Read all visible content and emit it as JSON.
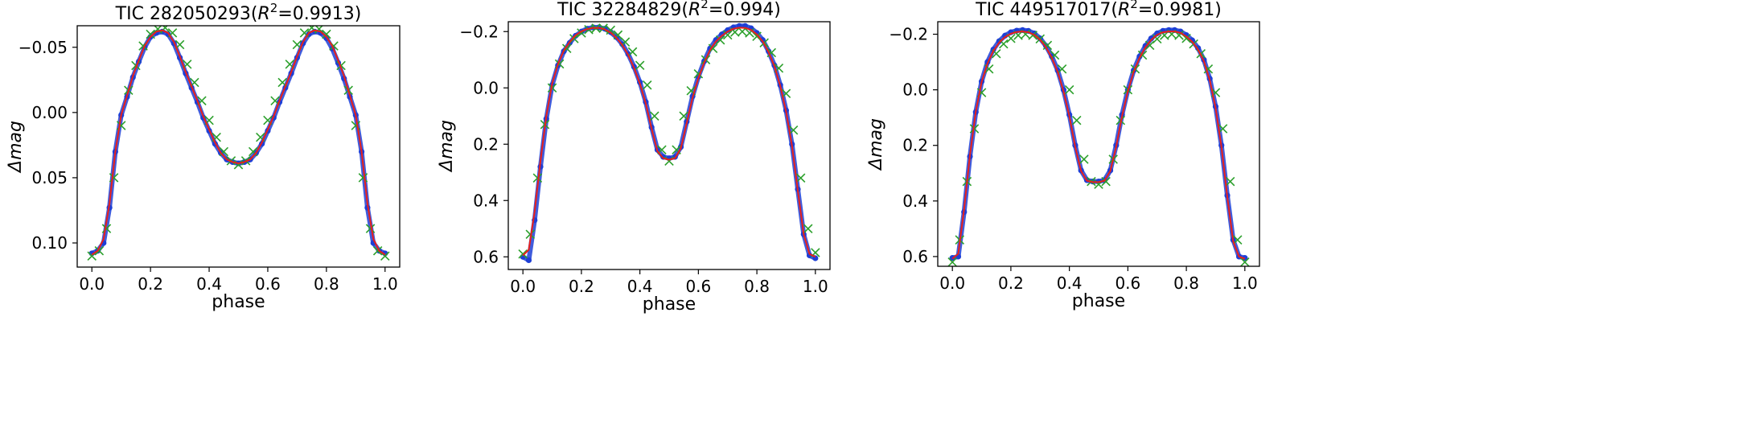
{
  "chart_data": [
    {
      "type": "scatter",
      "title_main": "TIC 282050293(",
      "title_sup": "2",
      "title_tail": "=0.9913)",
      "xlabel": "phase",
      "ylabel": "Δmag",
      "xlim": [
        -0.05,
        1.05
      ],
      "ylim": [
        0.1185,
        -0.0665
      ],
      "y_inverted": true,
      "xticks": [
        0.0,
        0.2,
        0.4,
        0.6,
        0.8,
        1.0
      ],
      "xtick_labels": [
        "0.0",
        "0.2",
        "0.4",
        "0.6",
        "0.8",
        "1.0"
      ],
      "yticks": [
        -0.05,
        0.0,
        0.05,
        0.1
      ],
      "ytick_labels": [
        "−0.05",
        "0.00",
        "0.05",
        "0.10"
      ],
      "grid": false,
      "legend": "none",
      "series": [
        {
          "role": "observed",
          "marker": "dot",
          "color": "#1f3fd6",
          "x": [
            0.0,
            0.02,
            0.04,
            0.06,
            0.08,
            0.1,
            0.12,
            0.14,
            0.16,
            0.18,
            0.2,
            0.22,
            0.24,
            0.26,
            0.28,
            0.3,
            0.32,
            0.34,
            0.36,
            0.38,
            0.4,
            0.42,
            0.44,
            0.46,
            0.48,
            0.5,
            0.52,
            0.54,
            0.56,
            0.58,
            0.6,
            0.62,
            0.64,
            0.66,
            0.68,
            0.7,
            0.72,
            0.74,
            0.76,
            0.78,
            0.8,
            0.82,
            0.84,
            0.86,
            0.88,
            0.9,
            0.92,
            0.94,
            0.96,
            0.98,
            1.0
          ],
          "y": [
            0.108,
            0.106,
            0.1,
            0.073,
            0.03,
            0.002,
            -0.012,
            -0.027,
            -0.039,
            -0.05,
            -0.058,
            -0.061,
            -0.062,
            -0.06,
            -0.053,
            -0.042,
            -0.03,
            -0.019,
            -0.008,
            0.004,
            0.014,
            0.024,
            0.031,
            0.036,
            0.038,
            0.039,
            0.038,
            0.036,
            0.031,
            0.024,
            0.014,
            0.004,
            -0.008,
            -0.019,
            -0.03,
            -0.042,
            -0.053,
            -0.06,
            -0.062,
            -0.061,
            -0.057,
            -0.049,
            -0.038,
            -0.026,
            -0.012,
            0.002,
            0.03,
            0.073,
            0.1,
            0.106,
            0.108
          ]
        },
        {
          "role": "model",
          "marker": "x",
          "color": "#2ca02c",
          "x": [
            0.0,
            0.025,
            0.05,
            0.075,
            0.1,
            0.125,
            0.15,
            0.175,
            0.2,
            0.225,
            0.25,
            0.275,
            0.3,
            0.325,
            0.35,
            0.375,
            0.4,
            0.425,
            0.45,
            0.475,
            0.5,
            0.525,
            0.55,
            0.575,
            0.6,
            0.625,
            0.65,
            0.675,
            0.7,
            0.725,
            0.75,
            0.775,
            0.8,
            0.825,
            0.85,
            0.875,
            0.9,
            0.925,
            0.95,
            0.975,
            1.0
          ],
          "y": [
            0.11,
            0.106,
            0.089,
            0.05,
            0.01,
            -0.017,
            -0.036,
            -0.051,
            -0.06,
            -0.064,
            -0.065,
            -0.061,
            -0.052,
            -0.037,
            -0.023,
            -0.009,
            0.006,
            0.019,
            0.03,
            0.037,
            0.04,
            0.037,
            0.03,
            0.019,
            0.006,
            -0.009,
            -0.023,
            -0.037,
            -0.052,
            -0.061,
            -0.065,
            -0.064,
            -0.06,
            -0.051,
            -0.036,
            -0.017,
            0.01,
            0.05,
            0.089,
            0.106,
            0.11
          ]
        },
        {
          "role": "fit",
          "marker": "line",
          "color": "#e8201b",
          "x": [
            0.0,
            0.02,
            0.04,
            0.06,
            0.08,
            0.1,
            0.12,
            0.14,
            0.16,
            0.18,
            0.2,
            0.22,
            0.24,
            0.26,
            0.28,
            0.3,
            0.32,
            0.34,
            0.36,
            0.38,
            0.4,
            0.42,
            0.44,
            0.46,
            0.48,
            0.5,
            0.52,
            0.54,
            0.56,
            0.58,
            0.6,
            0.62,
            0.64,
            0.66,
            0.68,
            0.7,
            0.72,
            0.74,
            0.76,
            0.78,
            0.8,
            0.82,
            0.84,
            0.86,
            0.88,
            0.9,
            0.92,
            0.94,
            0.96,
            0.98,
            1.0
          ],
          "y": [
            0.109,
            0.106,
            0.097,
            0.07,
            0.03,
            0.002,
            -0.013,
            -0.028,
            -0.04,
            -0.051,
            -0.058,
            -0.062,
            -0.063,
            -0.061,
            -0.054,
            -0.043,
            -0.031,
            -0.02,
            -0.009,
            0.003,
            0.013,
            0.023,
            0.031,
            0.036,
            0.038,
            0.039,
            0.038,
            0.036,
            0.031,
            0.023,
            0.013,
            0.003,
            -0.009,
            -0.02,
            -0.031,
            -0.043,
            -0.054,
            -0.061,
            -0.063,
            -0.062,
            -0.058,
            -0.051,
            -0.04,
            -0.028,
            -0.013,
            0.002,
            0.03,
            0.07,
            0.097,
            0.106,
            0.109
          ]
        }
      ]
    },
    {
      "type": "scatter",
      "title_main": "TIC 32284829(",
      "title_sup": "2",
      "title_tail": "=0.994)",
      "xlabel": "phase",
      "ylabel": "Δmag",
      "xlim": [
        -0.05,
        1.05
      ],
      "ylim": [
        0.645,
        -0.235
      ],
      "y_inverted": true,
      "xticks": [
        0.0,
        0.2,
        0.4,
        0.6,
        0.8,
        1.0
      ],
      "xtick_labels": [
        "0.0",
        "0.2",
        "0.4",
        "0.6",
        "0.8",
        "1.0"
      ],
      "yticks": [
        -0.2,
        0.0,
        0.2,
        0.4,
        0.6
      ],
      "ytick_labels": [
        "−0.2",
        "0.0",
        "0.2",
        "0.4",
        "0.6"
      ],
      "grid": false,
      "legend": "none",
      "series": [
        {
          "role": "observed",
          "marker": "dot",
          "color": "#1f3fd6",
          "x": [
            0.0,
            0.02,
            0.04,
            0.06,
            0.08,
            0.1,
            0.12,
            0.14,
            0.16,
            0.18,
            0.2,
            0.22,
            0.24,
            0.26,
            0.28,
            0.3,
            0.32,
            0.34,
            0.36,
            0.38,
            0.4,
            0.42,
            0.44,
            0.46,
            0.48,
            0.5,
            0.52,
            0.54,
            0.56,
            0.58,
            0.6,
            0.62,
            0.64,
            0.66,
            0.68,
            0.7,
            0.72,
            0.74,
            0.76,
            0.78,
            0.8,
            0.82,
            0.84,
            0.86,
            0.88,
            0.9,
            0.92,
            0.94,
            0.96,
            0.98,
            1.0
          ],
          "y": [
            0.6,
            0.612,
            0.47,
            0.28,
            0.11,
            -0.01,
            -0.08,
            -0.13,
            -0.16,
            -0.185,
            -0.2,
            -0.21,
            -0.215,
            -0.215,
            -0.21,
            -0.198,
            -0.18,
            -0.155,
            -0.12,
            -0.075,
            -0.02,
            0.05,
            0.14,
            0.22,
            0.245,
            0.25,
            0.245,
            0.21,
            0.12,
            0.03,
            -0.04,
            -0.095,
            -0.14,
            -0.17,
            -0.19,
            -0.205,
            -0.215,
            -0.22,
            -0.22,
            -0.212,
            -0.195,
            -0.17,
            -0.13,
            -0.08,
            -0.01,
            0.08,
            0.2,
            0.36,
            0.52,
            0.595,
            0.605
          ]
        },
        {
          "role": "model",
          "marker": "x",
          "color": "#2ca02c",
          "x": [
            0.0,
            0.025,
            0.05,
            0.075,
            0.1,
            0.125,
            0.15,
            0.175,
            0.2,
            0.225,
            0.25,
            0.275,
            0.3,
            0.325,
            0.35,
            0.375,
            0.4,
            0.425,
            0.45,
            0.475,
            0.5,
            0.525,
            0.55,
            0.575,
            0.6,
            0.625,
            0.65,
            0.675,
            0.7,
            0.725,
            0.75,
            0.775,
            0.8,
            0.825,
            0.85,
            0.875,
            0.9,
            0.925,
            0.95,
            0.975,
            1.0
          ],
          "y": [
            0.59,
            0.52,
            0.32,
            0.13,
            0.0,
            -0.085,
            -0.14,
            -0.175,
            -0.195,
            -0.207,
            -0.212,
            -0.212,
            -0.205,
            -0.188,
            -0.163,
            -0.128,
            -0.08,
            -0.01,
            0.1,
            0.22,
            0.26,
            0.22,
            0.1,
            0.01,
            -0.05,
            -0.1,
            -0.14,
            -0.17,
            -0.188,
            -0.198,
            -0.2,
            -0.195,
            -0.183,
            -0.16,
            -0.125,
            -0.07,
            0.02,
            0.15,
            0.32,
            0.5,
            0.585
          ]
        },
        {
          "role": "fit",
          "marker": "line",
          "color": "#e8201b",
          "x": [
            0.0,
            0.02,
            0.04,
            0.06,
            0.08,
            0.1,
            0.12,
            0.14,
            0.16,
            0.18,
            0.2,
            0.22,
            0.24,
            0.26,
            0.28,
            0.3,
            0.32,
            0.34,
            0.36,
            0.38,
            0.4,
            0.42,
            0.44,
            0.46,
            0.48,
            0.5,
            0.52,
            0.54,
            0.56,
            0.58,
            0.6,
            0.62,
            0.64,
            0.66,
            0.68,
            0.7,
            0.72,
            0.74,
            0.76,
            0.78,
            0.8,
            0.82,
            0.84,
            0.86,
            0.88,
            0.9,
            0.92,
            0.94,
            0.96,
            0.98,
            1.0
          ],
          "y": [
            0.595,
            0.575,
            0.44,
            0.26,
            0.1,
            -0.015,
            -0.085,
            -0.133,
            -0.163,
            -0.187,
            -0.201,
            -0.209,
            -0.213,
            -0.213,
            -0.208,
            -0.196,
            -0.178,
            -0.152,
            -0.117,
            -0.071,
            -0.015,
            0.055,
            0.145,
            0.225,
            0.25,
            0.255,
            0.25,
            0.215,
            0.125,
            0.035,
            -0.035,
            -0.09,
            -0.135,
            -0.165,
            -0.185,
            -0.2,
            -0.21,
            -0.214,
            -0.213,
            -0.206,
            -0.19,
            -0.165,
            -0.127,
            -0.077,
            -0.007,
            0.085,
            0.205,
            0.365,
            0.52,
            0.59,
            0.6
          ]
        }
      ]
    },
    {
      "type": "scatter",
      "title_main": "TIC 449517017(",
      "title_sup": "2",
      "title_tail": "=0.9981)",
      "xlabel": "phase",
      "ylabel": "Δmag",
      "xlim": [
        -0.05,
        1.05
      ],
      "ylim": [
        0.635,
        -0.245
      ],
      "y_inverted": true,
      "xticks": [
        0.0,
        0.2,
        0.4,
        0.6,
        0.8,
        1.0
      ],
      "xtick_labels": [
        "0.0",
        "0.2",
        "0.4",
        "0.6",
        "0.8",
        "1.0"
      ],
      "yticks": [
        -0.2,
        0.0,
        0.2,
        0.4,
        0.6
      ],
      "ytick_labels": [
        "−0.2",
        "0.0",
        "0.2",
        "0.4",
        "0.6"
      ],
      "grid": false,
      "legend": "none",
      "series": [
        {
          "role": "observed",
          "marker": "dot",
          "color": "#1f3fd6",
          "x": [
            0.0,
            0.02,
            0.04,
            0.06,
            0.08,
            0.1,
            0.12,
            0.14,
            0.16,
            0.18,
            0.2,
            0.22,
            0.24,
            0.26,
            0.28,
            0.3,
            0.32,
            0.34,
            0.36,
            0.38,
            0.4,
            0.42,
            0.44,
            0.46,
            0.48,
            0.5,
            0.52,
            0.54,
            0.56,
            0.58,
            0.6,
            0.62,
            0.64,
            0.66,
            0.68,
            0.7,
            0.72,
            0.74,
            0.76,
            0.78,
            0.8,
            0.82,
            0.84,
            0.86,
            0.88,
            0.9,
            0.92,
            0.94,
            0.96,
            0.98,
            1.0
          ],
          "y": [
            0.605,
            0.6,
            0.44,
            0.24,
            0.08,
            -0.03,
            -0.1,
            -0.145,
            -0.175,
            -0.195,
            -0.207,
            -0.213,
            -0.215,
            -0.212,
            -0.203,
            -0.185,
            -0.158,
            -0.12,
            -0.07,
            0.0,
            0.09,
            0.2,
            0.29,
            0.325,
            0.33,
            0.33,
            0.325,
            0.29,
            0.2,
            0.09,
            0.0,
            -0.07,
            -0.12,
            -0.158,
            -0.185,
            -0.203,
            -0.212,
            -0.215,
            -0.215,
            -0.21,
            -0.197,
            -0.178,
            -0.15,
            -0.108,
            -0.04,
            0.06,
            0.2,
            0.38,
            0.54,
            0.6,
            0.605
          ]
        },
        {
          "role": "model",
          "marker": "x",
          "color": "#2ca02c",
          "x": [
            0.0,
            0.025,
            0.05,
            0.075,
            0.1,
            0.125,
            0.15,
            0.175,
            0.2,
            0.225,
            0.25,
            0.275,
            0.3,
            0.325,
            0.35,
            0.375,
            0.4,
            0.425,
            0.45,
            0.475,
            0.5,
            0.525,
            0.55,
            0.575,
            0.6,
            0.625,
            0.65,
            0.675,
            0.7,
            0.725,
            0.75,
            0.775,
            0.8,
            0.825,
            0.85,
            0.875,
            0.9,
            0.925,
            0.95,
            0.975,
            1.0
          ],
          "y": [
            0.62,
            0.54,
            0.33,
            0.14,
            0.01,
            -0.075,
            -0.13,
            -0.165,
            -0.185,
            -0.196,
            -0.2,
            -0.196,
            -0.183,
            -0.16,
            -0.125,
            -0.075,
            0.0,
            0.11,
            0.25,
            0.33,
            0.34,
            0.33,
            0.25,
            0.11,
            0.0,
            -0.075,
            -0.125,
            -0.16,
            -0.183,
            -0.196,
            -0.2,
            -0.196,
            -0.185,
            -0.165,
            -0.13,
            -0.075,
            0.01,
            0.14,
            0.33,
            0.54,
            0.62
          ]
        },
        {
          "role": "fit",
          "marker": "line",
          "color": "#e8201b",
          "x": [
            0.0,
            0.02,
            0.04,
            0.06,
            0.08,
            0.1,
            0.12,
            0.14,
            0.16,
            0.18,
            0.2,
            0.22,
            0.24,
            0.26,
            0.28,
            0.3,
            0.32,
            0.34,
            0.36,
            0.38,
            0.4,
            0.42,
            0.44,
            0.46,
            0.48,
            0.5,
            0.52,
            0.54,
            0.56,
            0.58,
            0.6,
            0.62,
            0.64,
            0.66,
            0.68,
            0.7,
            0.72,
            0.74,
            0.76,
            0.78,
            0.8,
            0.82,
            0.84,
            0.86,
            0.88,
            0.9,
            0.92,
            0.94,
            0.96,
            0.98,
            1.0
          ],
          "y": [
            0.608,
            0.59,
            0.43,
            0.235,
            0.078,
            -0.028,
            -0.095,
            -0.14,
            -0.17,
            -0.19,
            -0.202,
            -0.208,
            -0.21,
            -0.207,
            -0.198,
            -0.18,
            -0.153,
            -0.115,
            -0.065,
            0.005,
            0.095,
            0.205,
            0.292,
            0.327,
            0.332,
            0.332,
            0.327,
            0.292,
            0.205,
            0.095,
            0.005,
            -0.065,
            -0.115,
            -0.153,
            -0.18,
            -0.198,
            -0.207,
            -0.21,
            -0.21,
            -0.205,
            -0.192,
            -0.173,
            -0.145,
            -0.103,
            -0.035,
            0.065,
            0.205,
            0.385,
            0.545,
            0.6,
            0.608
          ]
        }
      ]
    }
  ]
}
